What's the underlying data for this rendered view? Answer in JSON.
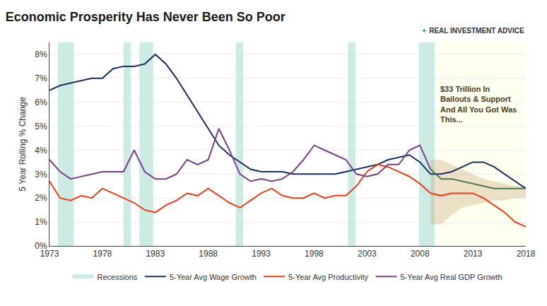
{
  "chart_data": {
    "type": "line",
    "title": "Economic Prosperity Has Never Been So Poor",
    "ylabel": "5 Year Rolling % Change",
    "xlim": [
      1973,
      2018
    ],
    "ylim": [
      0.0,
      0.085
    ],
    "xticks": [
      1973,
      1978,
      1983,
      1988,
      1993,
      1998,
      2003,
      2008,
      2013,
      2018
    ],
    "yticks": [
      {
        "value": 0.0,
        "label": "0%"
      },
      {
        "value": 0.01,
        "label": "1%"
      },
      {
        "value": 0.02,
        "label": "2%"
      },
      {
        "value": 0.03,
        "label": "3%"
      },
      {
        "value": 0.04,
        "label": "4%"
      },
      {
        "value": 0.05,
        "label": "5%"
      },
      {
        "value": 0.06,
        "label": "6%"
      },
      {
        "value": 0.07,
        "label": "7%"
      },
      {
        "value": 0.08,
        "label": "8%"
      }
    ],
    "grid": "y",
    "legend": "bottom",
    "recessions": {
      "name": "Recessions",
      "color": "#cdeae5",
      "periods": [
        [
          1973.8,
          1975.3
        ],
        [
          1980.0,
          1980.7
        ],
        [
          1981.5,
          1982.8
        ],
        [
          1990.6,
          1991.3
        ],
        [
          2001.2,
          2001.9
        ],
        [
          2007.9,
          2009.4
        ]
      ]
    },
    "forecast_region": {
      "start": 2009.5,
      "end": 2018.3,
      "color": "#fffff0"
    },
    "band": {
      "color": "#c8a87a",
      "x": [
        2009,
        2010,
        2011,
        2012,
        2013,
        2014,
        2015,
        2016,
        2017,
        2018
      ],
      "upper": [
        0.036,
        0.036,
        0.034,
        0.032,
        0.03,
        0.028,
        0.027,
        0.026,
        0.025,
        0.025
      ],
      "lower": [
        0.009,
        0.009,
        0.013,
        0.016,
        0.017,
        0.018,
        0.019,
        0.019,
        0.02,
        0.02
      ]
    },
    "series": [
      {
        "name": "5-Year Avg Wage Growth",
        "color": "#1a2f5e",
        "x": [
          1973,
          1974,
          1975,
          1976,
          1977,
          1978,
          1979,
          1980,
          1981,
          1982,
          1983,
          1984,
          1985,
          1986,
          1987,
          1988,
          1989,
          1990,
          1991,
          1992,
          1993,
          1994,
          1995,
          1996,
          1997,
          1998,
          1999,
          2000,
          2001,
          2002,
          2003,
          2004,
          2005,
          2006,
          2007,
          2008,
          2009
        ],
        "values": [
          0.065,
          0.067,
          0.068,
          0.069,
          0.07,
          0.07,
          0.074,
          0.075,
          0.075,
          0.076,
          0.08,
          0.076,
          0.07,
          0.063,
          0.056,
          0.049,
          0.042,
          0.038,
          0.035,
          0.032,
          0.031,
          0.031,
          0.031,
          0.03,
          0.03,
          0.03,
          0.03,
          0.03,
          0.031,
          0.032,
          0.033,
          0.034,
          0.036,
          0.037,
          0.038,
          0.035,
          0.03
        ]
      },
      {
        "name": "5-Year Avg Productivity",
        "color": "#e8401c",
        "x": [
          1973,
          1974,
          1975,
          1976,
          1977,
          1978,
          1979,
          1980,
          1981,
          1982,
          1983,
          1984,
          1985,
          1986,
          1987,
          1988,
          1989,
          1990,
          1991,
          1992,
          1993,
          1994,
          1995,
          1996,
          1997,
          1998,
          1999,
          2000,
          2001,
          2002,
          2003,
          2004,
          2005,
          2006,
          2007,
          2008,
          2009
        ],
        "values": [
          0.027,
          0.02,
          0.019,
          0.021,
          0.02,
          0.024,
          0.022,
          0.02,
          0.018,
          0.015,
          0.014,
          0.017,
          0.019,
          0.022,
          0.021,
          0.024,
          0.021,
          0.018,
          0.016,
          0.019,
          0.022,
          0.024,
          0.021,
          0.02,
          0.02,
          0.022,
          0.02,
          0.021,
          0.021,
          0.025,
          0.031,
          0.034,
          0.033,
          0.031,
          0.029,
          0.026,
          0.022
        ]
      },
      {
        "name": "5-Year Avg Real GDP Growth",
        "color": "#7b3f8c",
        "x": [
          1973,
          1974,
          1975,
          1976,
          1977,
          1978,
          1979,
          1980,
          1981,
          1982,
          1983,
          1984,
          1985,
          1986,
          1987,
          1988,
          1989,
          1990,
          1991,
          1992,
          1993,
          1994,
          1995,
          1996,
          1997,
          1998,
          1999,
          2000,
          2001,
          2002,
          2003,
          2004,
          2005,
          2006,
          2007,
          2008,
          2009
        ],
        "values": [
          0.036,
          0.031,
          0.028,
          0.029,
          0.03,
          0.031,
          0.031,
          0.031,
          0.04,
          0.031,
          0.028,
          0.028,
          0.03,
          0.036,
          0.034,
          0.036,
          0.049,
          0.04,
          0.03,
          0.027,
          0.028,
          0.027,
          0.028,
          0.031,
          0.036,
          0.042,
          0.04,
          0.038,
          0.036,
          0.03,
          0.029,
          0.03,
          0.034,
          0.034,
          0.04,
          0.042,
          0.032
        ]
      },
      {
        "color": "#1a2f5e",
        "x": [
          2009,
          2010,
          2011,
          2012,
          2013,
          2014,
          2015,
          2016,
          2017,
          2018
        ],
        "values": [
          0.03,
          0.03,
          0.031,
          0.033,
          0.035,
          0.035,
          0.033,
          0.03,
          0.027,
          0.024
        ]
      },
      {
        "color": "#e8401c",
        "x": [
          2009,
          2010,
          2011,
          2012,
          2013,
          2014,
          2015,
          2016,
          2017,
          2018
        ],
        "values": [
          0.022,
          0.021,
          0.022,
          0.022,
          0.022,
          0.02,
          0.017,
          0.014,
          0.01,
          0.008
        ]
      },
      {
        "color": "#4a7a4a",
        "x": [
          2009,
          2010,
          2011,
          2012,
          2013,
          2014,
          2015,
          2016,
          2017,
          2018
        ],
        "values": [
          0.032,
          0.028,
          0.028,
          0.027,
          0.026,
          0.025,
          0.024,
          0.024,
          0.024,
          0.024
        ]
      }
    ],
    "annotations": [
      {
        "text": "$33 Trillion In\nBailouts & Support\nAnd All You Got Was\nThis...",
        "x": 2009.8,
        "y": 0.068,
        "color": "#4a3a1a"
      }
    ],
    "logo": {
      "text": "REAL INVESTMENT ADVICE",
      "symbol": "✦",
      "color": "#3aaa8a"
    }
  }
}
